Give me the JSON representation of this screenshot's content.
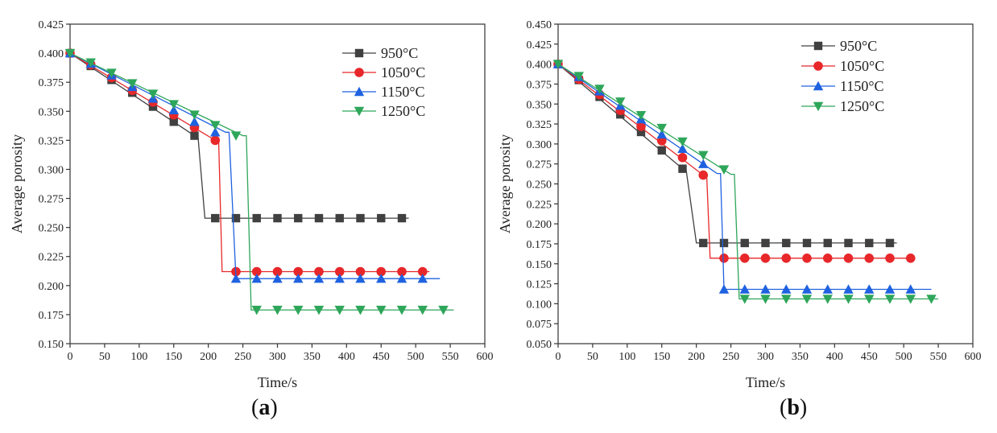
{
  "chart_data": [
    {
      "type": "line",
      "panel": "a",
      "panel_label": "(a)",
      "xlabel": "Time/s",
      "ylabel": "Average porosity",
      "xlim": [
        0,
        600
      ],
      "ylim": [
        0.15,
        0.425
      ],
      "xticks": [
        0,
        50,
        100,
        150,
        200,
        250,
        300,
        350,
        400,
        450,
        500,
        550,
        600
      ],
      "yticks": [
        0.15,
        0.175,
        0.2,
        0.225,
        0.25,
        0.275,
        0.3,
        0.325,
        0.35,
        0.375,
        0.4,
        0.425
      ],
      "legend_position": "top-right",
      "grid": false,
      "series": [
        {
          "name": "950°C",
          "color": "#404040",
          "marker": "square",
          "line": [
            [
              0,
              0.4
            ],
            [
              180,
              0.329
            ],
            [
              185,
              0.329
            ],
            [
              195,
              0.258
            ],
            [
              490,
              0.258
            ]
          ],
          "markers_x": [
            0,
            30,
            60,
            90,
            120,
            150,
            180,
            210,
            240,
            270,
            300,
            330,
            360,
            390,
            420,
            450,
            480
          ],
          "markers_y": [
            0.4,
            0.389,
            0.377,
            0.366,
            0.354,
            0.341,
            0.329,
            0.258,
            0.258,
            0.258,
            0.258,
            0.258,
            0.258,
            0.258,
            0.258,
            0.258,
            0.258
          ]
        },
        {
          "name": "1050°C",
          "color": "#e8272a",
          "marker": "circle",
          "line": [
            [
              0,
              0.4
            ],
            [
              210,
              0.325
            ],
            [
              215,
              0.325
            ],
            [
              220,
              0.212
            ],
            [
              520,
              0.212
            ]
          ],
          "markers_x": [
            0,
            30,
            60,
            90,
            120,
            150,
            180,
            210,
            240,
            270,
            300,
            330,
            360,
            390,
            420,
            450,
            480,
            510
          ],
          "markers_y": [
            0.4,
            0.39,
            0.379,
            0.368,
            0.358,
            0.347,
            0.336,
            0.325,
            0.212,
            0.212,
            0.212,
            0.212,
            0.212,
            0.212,
            0.212,
            0.212,
            0.212,
            0.212
          ]
        },
        {
          "name": "1150°C",
          "color": "#1f62e0",
          "marker": "triangle-up",
          "line": [
            [
              0,
              0.4
            ],
            [
              225,
              0.332
            ],
            [
              230,
              0.332
            ],
            [
              240,
              0.206
            ],
            [
              535,
              0.206
            ]
          ],
          "markers_x": [
            0,
            30,
            60,
            90,
            120,
            150,
            180,
            210,
            240,
            270,
            300,
            330,
            360,
            390,
            420,
            450,
            480,
            510
          ],
          "markers_y": [
            0.4,
            0.391,
            0.381,
            0.371,
            0.361,
            0.351,
            0.341,
            0.332,
            0.206,
            0.206,
            0.206,
            0.206,
            0.206,
            0.206,
            0.206,
            0.206,
            0.206,
            0.206
          ]
        },
        {
          "name": "1250°C",
          "color": "#2ea65a",
          "marker": "triangle-down",
          "line": [
            [
              0,
              0.4
            ],
            [
              250,
              0.329
            ],
            [
              255,
              0.329
            ],
            [
              262,
              0.179
            ],
            [
              555,
              0.179
            ]
          ],
          "markers_x": [
            0,
            30,
            60,
            90,
            120,
            150,
            180,
            210,
            240,
            270,
            300,
            330,
            360,
            390,
            420,
            450,
            480,
            510,
            540
          ],
          "markers_y": [
            0.4,
            0.392,
            0.383,
            0.374,
            0.365,
            0.356,
            0.347,
            0.338,
            0.329,
            0.179,
            0.179,
            0.179,
            0.179,
            0.179,
            0.179,
            0.179,
            0.179,
            0.179,
            0.179
          ]
        }
      ]
    },
    {
      "type": "line",
      "panel": "b",
      "panel_label": "(b)",
      "xlabel": "Time/s",
      "ylabel": "Average porosity",
      "xlim": [
        0,
        600
      ],
      "ylim": [
        0.05,
        0.45
      ],
      "xticks": [
        0,
        50,
        100,
        150,
        200,
        250,
        300,
        350,
        400,
        450,
        500,
        550,
        600
      ],
      "yticks": [
        0.05,
        0.075,
        0.1,
        0.125,
        0.15,
        0.175,
        0.2,
        0.225,
        0.25,
        0.275,
        0.3,
        0.325,
        0.35,
        0.375,
        0.4,
        0.425,
        0.45
      ],
      "legend_position": "top-right",
      "grid": false,
      "series": [
        {
          "name": "950°C",
          "color": "#404040",
          "marker": "square",
          "line": [
            [
              0,
              0.4
            ],
            [
              180,
              0.269
            ],
            [
              185,
              0.269
            ],
            [
              200,
              0.176
            ],
            [
              490,
              0.176
            ]
          ],
          "markers_x": [
            0,
            30,
            60,
            90,
            120,
            150,
            180,
            210,
            240,
            270,
            300,
            330,
            360,
            390,
            420,
            450,
            480
          ],
          "markers_y": [
            0.4,
            0.38,
            0.359,
            0.337,
            0.315,
            0.292,
            0.269,
            0.176,
            0.176,
            0.176,
            0.176,
            0.176,
            0.176,
            0.176,
            0.176,
            0.176,
            0.176
          ]
        },
        {
          "name": "1050°C",
          "color": "#e8272a",
          "marker": "circle",
          "line": [
            [
              0,
              0.4
            ],
            [
              210,
              0.261
            ],
            [
              215,
              0.261
            ],
            [
              220,
              0.157
            ],
            [
              515,
              0.157
            ]
          ],
          "markers_x": [
            0,
            30,
            60,
            90,
            120,
            150,
            180,
            210,
            240,
            270,
            300,
            330,
            360,
            390,
            420,
            450,
            480,
            510
          ],
          "markers_y": [
            0.4,
            0.381,
            0.362,
            0.342,
            0.322,
            0.304,
            0.283,
            0.261,
            0.157,
            0.157,
            0.157,
            0.157,
            0.157,
            0.157,
            0.157,
            0.157,
            0.157,
            0.157
          ]
        },
        {
          "name": "1150°C",
          "color": "#1f62e0",
          "marker": "triangle-up",
          "line": [
            [
              0,
              0.4
            ],
            [
              230,
              0.263
            ],
            [
              235,
              0.263
            ],
            [
              240,
              0.118
            ],
            [
              540,
              0.118
            ]
          ],
          "markers_x": [
            0,
            30,
            60,
            90,
            120,
            150,
            180,
            210,
            240,
            270,
            300,
            330,
            360,
            390,
            420,
            450,
            480,
            510
          ],
          "markers_y": [
            0.4,
            0.384,
            0.366,
            0.348,
            0.331,
            0.312,
            0.294,
            0.275,
            0.118,
            0.118,
            0.118,
            0.118,
            0.118,
            0.118,
            0.118,
            0.118,
            0.118,
            0.118
          ]
        },
        {
          "name": "1250°C",
          "color": "#2ea65a",
          "marker": "triangle-down",
          "line": [
            [
              0,
              0.4
            ],
            [
              250,
              0.262
            ],
            [
              255,
              0.262
            ],
            [
              262,
              0.106
            ],
            [
              550,
              0.106
            ]
          ],
          "markers_x": [
            0,
            30,
            60,
            90,
            120,
            150,
            180,
            210,
            240,
            270,
            300,
            330,
            360,
            390,
            420,
            450,
            480,
            510,
            540
          ],
          "markers_y": [
            0.4,
            0.385,
            0.369,
            0.353,
            0.336,
            0.32,
            0.303,
            0.286,
            0.268,
            0.106,
            0.106,
            0.106,
            0.106,
            0.106,
            0.106,
            0.106,
            0.106,
            0.106,
            0.106
          ]
        }
      ]
    }
  ]
}
